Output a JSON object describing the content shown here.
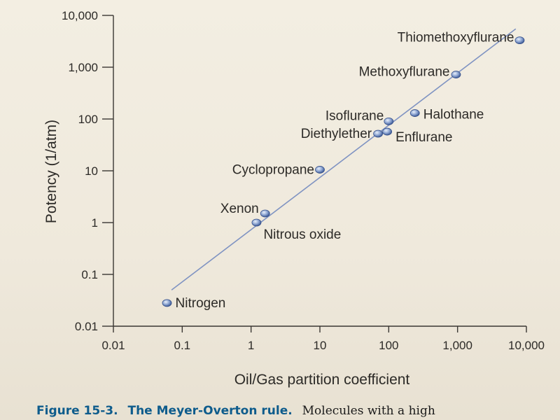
{
  "chart_data": {
    "type": "scatter",
    "xlabel": "Oil/Gas partition coefficient",
    "ylabel": "Potency (1/atm)",
    "x_scale": "log",
    "y_scale": "log",
    "xlim": [
      0.01,
      10000
    ],
    "ylim": [
      0.01,
      10000
    ],
    "x_ticks": [
      "0.01",
      "0.1",
      "1",
      "10",
      "100",
      "1,000",
      "10,000"
    ],
    "y_ticks": [
      "0.01",
      "0.1",
      "1",
      "10",
      "100",
      "1,000",
      "10,000"
    ],
    "x_tick_values": [
      0.01,
      0.1,
      1,
      10,
      100,
      1000,
      10000
    ],
    "y_tick_values": [
      0.01,
      0.1,
      1,
      10,
      100,
      1000,
      10000
    ],
    "grid": false,
    "trendline": {
      "x": [
        0.07,
        7000
      ],
      "y": [
        0.05,
        5500
      ]
    },
    "points": [
      {
        "label": "Nitrogen",
        "x": 0.06,
        "y": 0.028
      },
      {
        "label": "Nitrous oxide",
        "x": 1.2,
        "y": 1.0
      },
      {
        "label": "Xenon",
        "x": 1.6,
        "y": 1.5
      },
      {
        "label": "Cyclopropane",
        "x": 10,
        "y": 10.5
      },
      {
        "label": "Diethylether",
        "x": 70,
        "y": 52
      },
      {
        "label": "Enflurane",
        "x": 95,
        "y": 57
      },
      {
        "label": "Isoflurane",
        "x": 100,
        "y": 90
      },
      {
        "label": "Halothane",
        "x": 240,
        "y": 130
      },
      {
        "label": "Methoxyflurane",
        "x": 950,
        "y": 720
      },
      {
        "label": "Thiomethoxyflurane",
        "x": 8000,
        "y": 3300
      }
    ]
  },
  "caption": {
    "number": "Figure 15-3.",
    "title": "The Meyer-Overton rule.",
    "text": "Molecules with a high"
  }
}
